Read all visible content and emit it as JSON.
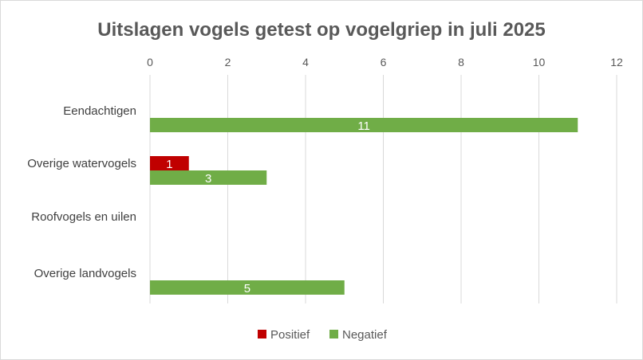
{
  "chart_data": {
    "type": "bar",
    "orientation": "horizontal",
    "title": "Uitslagen vogels getest op vogelgriep in juli 2025",
    "categories": [
      "Eendachtigen",
      "Overige watervogels",
      "Roofvogels en uilen",
      "Overige landvogels"
    ],
    "series": [
      {
        "name": "Positief",
        "color": "#c00000",
        "values": [
          0,
          1,
          0,
          0
        ]
      },
      {
        "name": "Negatief",
        "color": "#70ad47",
        "values": [
          11,
          3,
          0,
          5
        ]
      }
    ],
    "xlim": [
      0,
      12
    ],
    "xticks": [
      "0",
      "2",
      "4",
      "6",
      "8",
      "10",
      "12"
    ],
    "axis_position": "top",
    "grid": true,
    "legend": "bottom",
    "data_labels": true
  }
}
